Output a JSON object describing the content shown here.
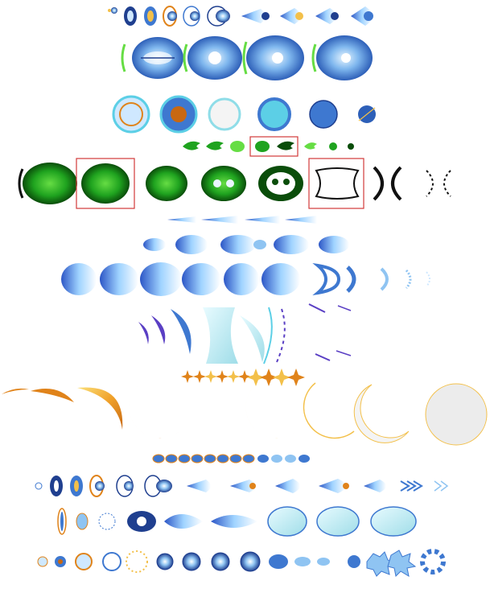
{
  "sheet": {
    "background": "#ffffff",
    "selection_color": "#d23a3a",
    "palette": {
      "blue_dark": "#1f3f8f",
      "blue_mid": "#3e78d0",
      "blue_light": "#8fc4f2",
      "cyan": "#5ccfe6",
      "green_dark": "#0a4d0a",
      "green_mid": "#1fa31f",
      "green_light": "#66dd44",
      "orange": "#e0831a",
      "gold": "#f3c04a",
      "cream": "#fbf1c9",
      "grey": "#ececec",
      "black": "#111111",
      "purple": "#5a3fc4"
    },
    "rows": [
      {
        "name": "row-small-blue-orbs",
        "frames": 11
      },
      {
        "name": "row-blue-skull-heads",
        "frames": 4
      },
      {
        "name": "row-blue-circles",
        "frames": 6
      },
      {
        "name": "row-small-green-flames",
        "frames": 8,
        "selected_frame": 3
      },
      {
        "name": "row-green-skulls",
        "frames": 8,
        "selected_frames": [
          1,
          5
        ]
      },
      {
        "name": "row-blue-darts",
        "frames": 4
      },
      {
        "name": "row-blue-flame-bursts",
        "frames": 6
      },
      {
        "name": "row-large-blue-flames",
        "frames": 11
      },
      {
        "name": "row-purple-crescents",
        "frames": 9
      },
      {
        "name": "row-orange-stars",
        "frames": 12
      },
      {
        "name": "row-golden-crescents",
        "frames": 9
      },
      {
        "name": "row-oval-gems",
        "frames": 12
      },
      {
        "name": "row-blue-projectiles",
        "frames": 14
      },
      {
        "name": "row-blue-energy-shots",
        "frames": 9
      },
      {
        "name": "row-explosion-sequence",
        "frames": 17
      }
    ]
  }
}
